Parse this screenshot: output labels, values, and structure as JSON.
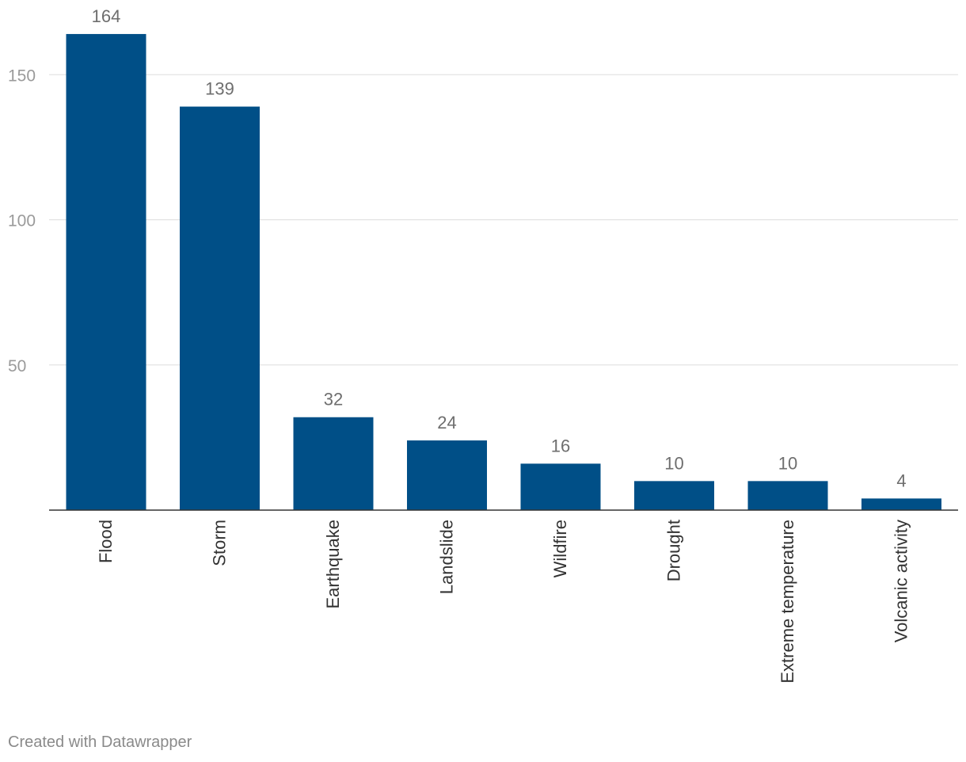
{
  "chart_data": {
    "type": "bar",
    "categories": [
      "Flood",
      "Storm",
      "Earthquake",
      "Landslide",
      "Wildfire",
      "Drought",
      "Extreme temperature",
      "Volcanic activity"
    ],
    "values": [
      164,
      139,
      32,
      24,
      16,
      10,
      10,
      4
    ],
    "ylim": [
      0,
      170
    ],
    "yticks": [
      50,
      100,
      150
    ],
    "grid": true,
    "bar_color": "#004f87",
    "data_labels": true
  },
  "footer": {
    "credit": "Created with Datawrapper"
  }
}
